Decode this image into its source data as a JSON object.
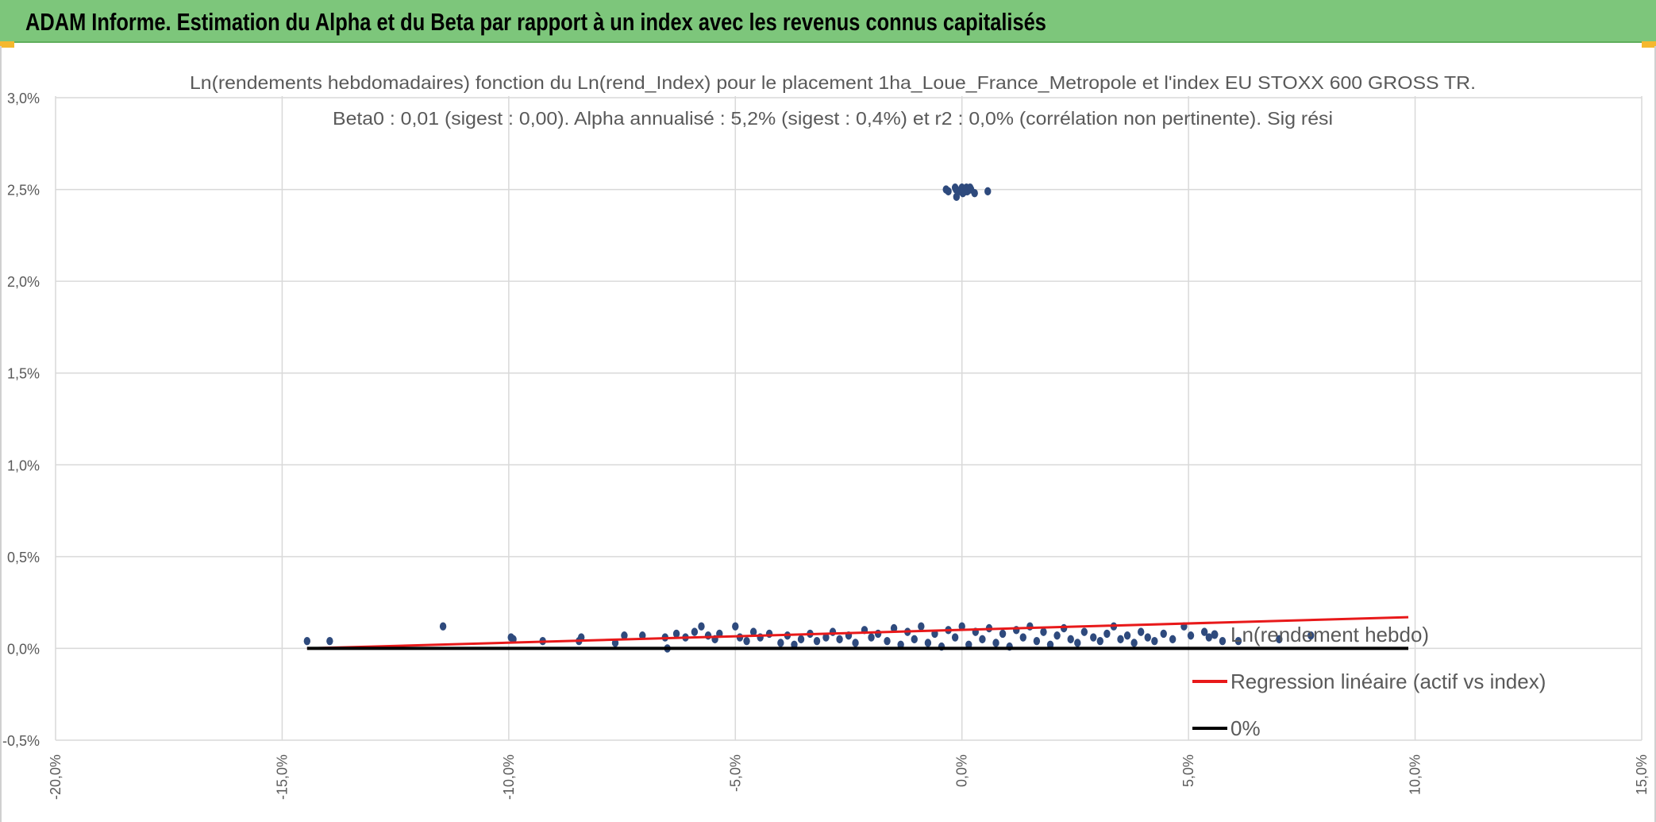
{
  "header": {
    "title": "ADAM Informe. Estimation du Alpha et du Beta par rapport à un index avec les revenus connus capitalisés"
  },
  "chart_data": {
    "type": "scatter",
    "title": "Ln(rendements hebdomadaires) fonction du Ln(rend_Index) pour le placement 1ha_Loue_France_Metropole et l'index EU STOXX 600 GROSS TR.",
    "subtitle": "Beta0 : 0,01 (sigest : 0,00). Alpha annualisé : 5,2% (sigest : 0,4%) et r2 : 0,0% (corrélation non pertinente). Sig rési",
    "xlabel": "",
    "ylabel": "",
    "xlim": [
      -0.2,
      0.15
    ],
    "ylim": [
      -0.005,
      0.03
    ],
    "x_ticks": [
      "-20,0%",
      "-15,0%",
      "-10,0%",
      "-5,0%",
      "0,0%",
      "5,0%",
      "10,0%",
      "15,0%"
    ],
    "y_ticks": [
      "-0,5%",
      "0,0%",
      "0,5%",
      "1,0%",
      "1,5%",
      "2,0%",
      "2,5%",
      "3,0%"
    ],
    "grid": true,
    "legend_position": "right",
    "series": [
      {
        "name": "Ln(rendement hebdo)",
        "kind": "points",
        "color": "#2e4a7d",
        "points": [
          [
            -0.1445,
            0.0004
          ],
          [
            -0.1395,
            0.0004
          ],
          [
            -0.1145,
            0.0012
          ],
          [
            -0.0995,
            0.0006
          ],
          [
            -0.099,
            0.0005
          ],
          [
            -0.0925,
            0.0004
          ],
          [
            -0.0845,
            0.0004
          ],
          [
            -0.084,
            0.0006
          ],
          [
            -0.0765,
            0.0003
          ],
          [
            -0.0745,
            0.0007
          ],
          [
            -0.0705,
            0.0007
          ],
          [
            -0.0655,
            0.0006
          ],
          [
            -0.065,
            0.0
          ],
          [
            -0.063,
            0.0008
          ],
          [
            -0.061,
            0.0006
          ],
          [
            -0.059,
            0.0009
          ],
          [
            -0.0575,
            0.0012
          ],
          [
            -0.056,
            0.0007
          ],
          [
            -0.0545,
            0.0005
          ],
          [
            -0.0535,
            0.0008
          ],
          [
            -0.05,
            0.0012
          ],
          [
            -0.049,
            0.0006
          ],
          [
            -0.0475,
            0.0004
          ],
          [
            -0.046,
            0.0009
          ],
          [
            -0.0445,
            0.0006
          ],
          [
            -0.0425,
            0.0008
          ],
          [
            -0.04,
            0.0003
          ],
          [
            -0.0385,
            0.0007
          ],
          [
            -0.037,
            0.0002
          ],
          [
            -0.0355,
            0.0005
          ],
          [
            -0.0335,
            0.0008
          ],
          [
            -0.032,
            0.0004
          ],
          [
            -0.03,
            0.0006
          ],
          [
            -0.0285,
            0.0009
          ],
          [
            -0.027,
            0.0005
          ],
          [
            -0.025,
            0.0007
          ],
          [
            -0.0235,
            0.0003
          ],
          [
            -0.0215,
            0.001
          ],
          [
            -0.02,
            0.0006
          ],
          [
            -0.0185,
            0.0008
          ],
          [
            -0.0165,
            0.0004
          ],
          [
            -0.015,
            0.0011
          ],
          [
            -0.0135,
            0.0002
          ],
          [
            -0.012,
            0.0009
          ],
          [
            -0.0105,
            0.0005
          ],
          [
            -0.009,
            0.0012
          ],
          [
            -0.0075,
            0.0003
          ],
          [
            -0.006,
            0.0008
          ],
          [
            -0.0045,
            0.0001
          ],
          [
            -0.003,
            0.001
          ],
          [
            -0.0015,
            0.0006
          ],
          [
            0.0,
            0.0012
          ],
          [
            0.0015,
            0.0002
          ],
          [
            0.003,
            0.0009
          ],
          [
            0.0045,
            0.0005
          ],
          [
            0.006,
            0.0011
          ],
          [
            0.0075,
            0.0003
          ],
          [
            0.009,
            0.0008
          ],
          [
            0.0105,
            0.0001
          ],
          [
            0.012,
            0.001
          ],
          [
            0.0135,
            0.0006
          ],
          [
            0.015,
            0.0012
          ],
          [
            0.0165,
            0.0004
          ],
          [
            0.018,
            0.0009
          ],
          [
            0.0195,
            0.0002
          ],
          [
            0.021,
            0.0007
          ],
          [
            0.0225,
            0.0011
          ],
          [
            0.024,
            0.0005
          ],
          [
            0.0255,
            0.0003
          ],
          [
            0.027,
            0.0009
          ],
          [
            0.029,
            0.0006
          ],
          [
            0.0305,
            0.0004
          ],
          [
            0.032,
            0.0008
          ],
          [
            0.0335,
            0.0012
          ],
          [
            0.035,
            0.0005
          ],
          [
            0.0365,
            0.0007
          ],
          [
            0.038,
            0.0003
          ],
          [
            0.0395,
            0.0009
          ],
          [
            0.041,
            0.0006
          ],
          [
            0.0425,
            0.0004
          ],
          [
            0.0445,
            0.0008
          ],
          [
            0.0465,
            0.0005
          ],
          [
            0.049,
            0.0012
          ],
          [
            0.0505,
            0.0007
          ],
          [
            0.0535,
            0.0009
          ],
          [
            0.0545,
            0.0006
          ],
          [
            0.0575,
            0.0004
          ],
          [
            0.061,
            0.0004
          ],
          [
            0.07,
            0.0005
          ],
          [
            0.077,
            0.0007
          ],
          [
            -0.0035,
            0.025
          ],
          [
            -0.003,
            0.0249
          ],
          [
            -0.0015,
            0.0251
          ],
          [
            -0.0013,
            0.025
          ],
          [
            -0.0012,
            0.0246
          ],
          [
            -0.0009,
            0.0249
          ],
          [
            -0.0003,
            0.0249
          ],
          [
            0.0,
            0.0251
          ],
          [
            0.0002,
            0.0248
          ],
          [
            0.0004,
            0.025
          ],
          [
            0.0008,
            0.0249
          ],
          [
            0.001,
            0.0251
          ],
          [
            0.0012,
            0.0249
          ],
          [
            0.0015,
            0.025
          ],
          [
            0.0018,
            0.0251
          ],
          [
            0.002,
            0.025
          ],
          [
            0.0028,
            0.0248
          ],
          [
            0.0057,
            0.0249
          ]
        ]
      },
      {
        "name": "Regression linéaire (actif vs index)",
        "kind": "line",
        "color": "#e8191a",
        "points": [
          [
            -0.1445,
            0.0
          ],
          [
            0.0985,
            0.0017
          ]
        ]
      },
      {
        "name": "0%",
        "kind": "line",
        "color": "#000000",
        "points": [
          [
            -0.1445,
            0.0
          ],
          [
            0.0985,
            0.0
          ]
        ]
      }
    ]
  }
}
